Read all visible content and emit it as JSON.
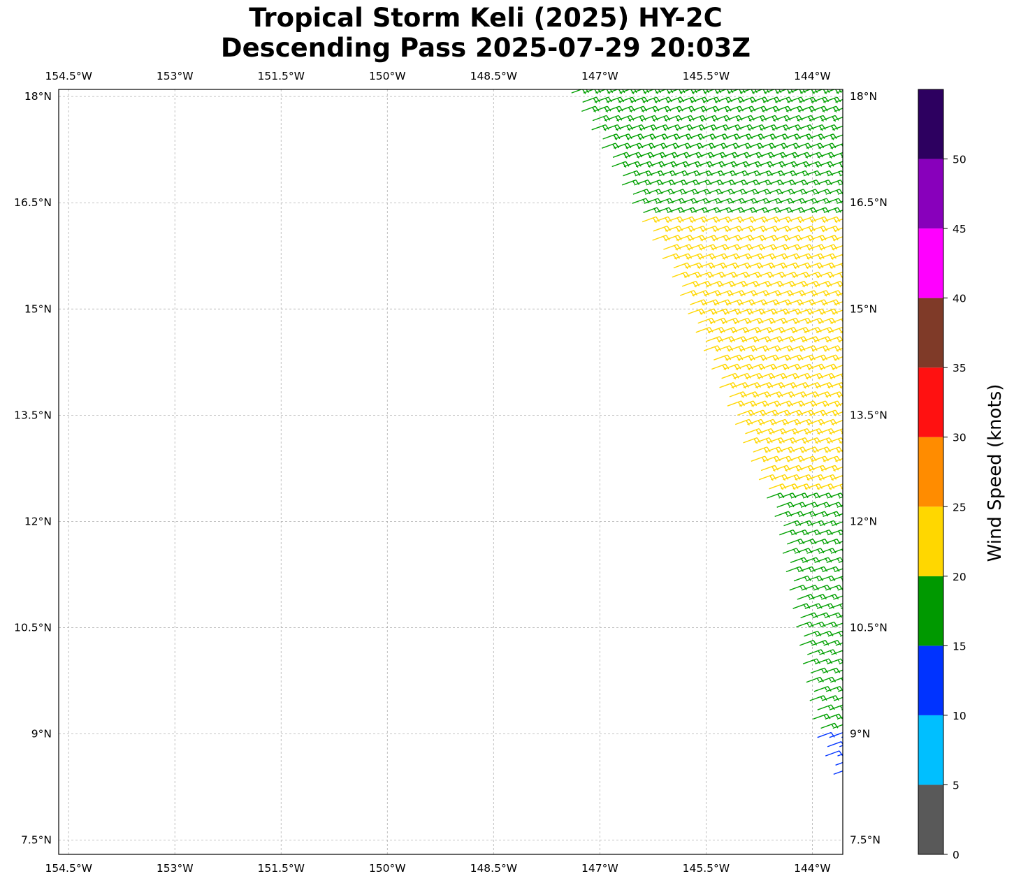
{
  "title": {
    "line1": "Tropical Storm Keli (2025) HY-2C",
    "line2": "Descending Pass 2025-07-29 20:03Z"
  },
  "chart_data": {
    "type": "wind_barbs",
    "title": "Tropical Storm Keli (2025) HY-2C Descending Pass 2025-07-29 20:03Z",
    "xlim": [
      -154.64,
      -143.57
    ],
    "ylim": [
      7.3,
      18.1
    ],
    "x_ticks": [
      -154.5,
      -153,
      -151.5,
      -150,
      -148.5,
      -147,
      -145.5,
      -144
    ],
    "x_tick_labels": [
      "154.5°W",
      "153°W",
      "151.5°W",
      "150°W",
      "148.5°W",
      "147°W",
      "145.5°W",
      "144°W"
    ],
    "y_ticks": [
      7.5,
      9,
      10.5,
      12,
      13.5,
      15,
      16.5,
      18
    ],
    "y_tick_labels": [
      "7.5°N",
      "9°N",
      "10.5°N",
      "12°N",
      "13.5°N",
      "15°N",
      "16.5°N",
      "18°N"
    ],
    "grid": true,
    "swath": {
      "west_edge": [
        [
          -147.4,
          18.05
        ],
        [
          -146.0,
          15.5
        ],
        [
          -144.5,
          12.0
        ],
        [
          -143.95,
          9.0
        ],
        [
          -143.6,
          8.2
        ]
      ],
      "east_edge_lon": -143.57,
      "lon_step": 0.17,
      "lat_step": 0.13,
      "wind_from_deg": 70
    },
    "speed_regions": [
      {
        "lat_range": [
          17.0,
          18.1
        ],
        "speed_kt": 20,
        "color": "#00a000"
      },
      {
        "lat_range": [
          16.3,
          17.0
        ],
        "speed_kt": 17,
        "color": "#00a000"
      },
      {
        "lat_range": [
          14.4,
          16.3
        ],
        "speed_kt": 22,
        "color": "#ffd700"
      },
      {
        "lat_range": [
          12.4,
          14.4
        ],
        "speed_kt": 23,
        "color": "#ffd700"
      },
      {
        "lat_range": [
          9.0,
          12.4
        ],
        "speed_kt": 18,
        "color": "#00a000"
      },
      {
        "lat_range": [
          8.2,
          9.0
        ],
        "speed_kt": 12,
        "color": "#0033ff"
      }
    ],
    "colorbar": {
      "label": "Wind Speed (knots)",
      "bounds": [
        0,
        5,
        10,
        15,
        20,
        25,
        30,
        35,
        40,
        45,
        50,
        55
      ],
      "colors": [
        "#595959",
        "#00bfff",
        "#0033ff",
        "#009900",
        "#ffd700",
        "#ff8c00",
        "#ff1111",
        "#7f3a28",
        "#ff00ff",
        "#8800bb",
        "#2d0060"
      ],
      "tick_values": [
        0,
        5,
        10,
        15,
        20,
        25,
        30,
        35,
        40,
        45,
        50
      ],
      "tick_labels": [
        "0",
        "5",
        "10",
        "15",
        "20",
        "25",
        "30",
        "35",
        "40",
        "45",
        "50"
      ]
    }
  }
}
